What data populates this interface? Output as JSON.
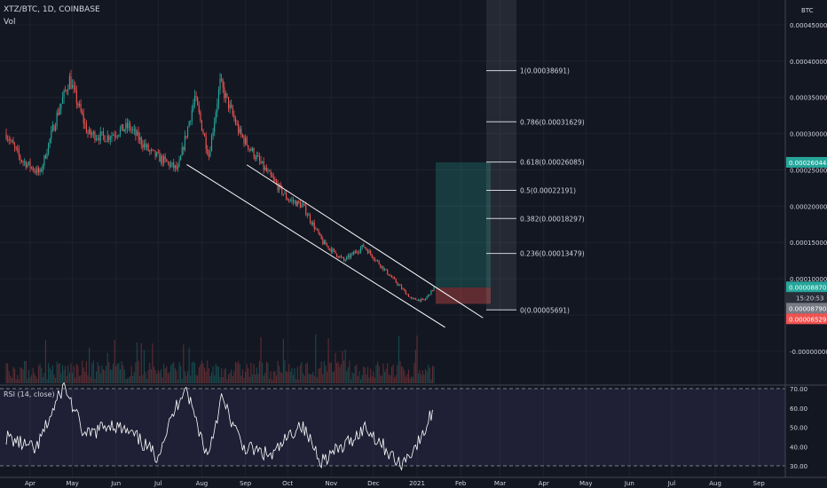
{
  "header": {
    "symbol": "XTZ/BTC, 1D, COINBASE",
    "vol": "Vol",
    "currency": "BTC"
  },
  "price_axis": {
    "ticks": [
      "0.00045000",
      "0.00040000",
      "0.00035000",
      "0.00030000",
      "0.00025000",
      "0.00020000",
      "0.00015000",
      "0.00010000",
      "0.00005000",
      "-0.00000000"
    ],
    "badges": {
      "target": "0.00026044",
      "last": "0.00008870",
      "countdown": "15:20:53",
      "entry": "0.00008790",
      "stop": "0.00006529"
    }
  },
  "fib": [
    {
      "label": "1(0.00038691)",
      "value": 0.00038691
    },
    {
      "label": "0.786(0.00031629)",
      "value": 0.00031629
    },
    {
      "label": "0.618(0.00026085)",
      "value": 0.00026085
    },
    {
      "label": "0.5(0.00022191)",
      "value": 0.00022191
    },
    {
      "label": "0.382(0.00018297)",
      "value": 0.00018297
    },
    {
      "label": "0.236(0.00013479)",
      "value": 0.00013479
    },
    {
      "label": "0(0.00005691)",
      "value": 5.691e-05
    }
  ],
  "rsi": {
    "title": "RSI (14, close)",
    "ticks": [
      "70.00",
      "60.00",
      "50.00",
      "40.00",
      "30.00"
    ]
  },
  "time_axis": [
    "Apr",
    "May",
    "Jun",
    "Jul",
    "Aug",
    "Sep",
    "Oct",
    "Nov",
    "Dec",
    "2021",
    "Feb",
    "Mar",
    "Apr",
    "May",
    "Jun",
    "Jul",
    "Aug",
    "Sep"
  ],
  "colors": {
    "up": "#26a69a",
    "down": "#ef5350",
    "rsi": "#ffffff",
    "rsi_band": "#7e57c2",
    "target_zone": "#26a69a",
    "stop_zone": "#ef5350"
  },
  "chart_data": {
    "type": "candlestick",
    "y_unit": "BTC",
    "ylim": [
      -1e-05,
      0.00045
    ],
    "rsi_ylim": [
      30,
      70
    ],
    "price_path": [
      [
        "2020-03-15",
        0.0003
      ],
      [
        "2020-03-25",
        0.000265
      ],
      [
        "2020-04-08",
        0.000245
      ],
      [
        "2020-04-20",
        0.000325
      ],
      [
        "2020-04-29",
        0.000375
      ],
      [
        "2020-05-12",
        0.0003
      ],
      [
        "2020-05-25",
        0.000295
      ],
      [
        "2020-06-10",
        0.00031
      ],
      [
        "2020-06-25",
        0.000275
      ],
      [
        "2020-07-15",
        0.00025
      ],
      [
        "2020-07-27",
        0.00035
      ],
      [
        "2020-08-06",
        0.00027
      ],
      [
        "2020-08-14",
        0.00037
      ],
      [
        "2020-08-28",
        0.0003
      ],
      [
        "2020-09-15",
        0.00025
      ],
      [
        "2020-10-01",
        0.00021
      ],
      [
        "2020-10-12",
        0.0002
      ],
      [
        "2020-10-26",
        0.00015
      ],
      [
        "2020-11-10",
        0.000125
      ],
      [
        "2020-11-24",
        0.000145
      ],
      [
        "2020-12-10",
        0.00011
      ],
      [
        "2020-12-28",
        7.2e-05
      ],
      [
        "2021-01-06",
        7e-05
      ],
      [
        "2021-01-13",
        8.7e-05
      ]
    ],
    "rsi_path": [
      [
        "2020-03-15",
        45
      ],
      [
        "2020-04-05",
        38
      ],
      [
        "2020-04-15",
        55
      ],
      [
        "2020-04-25",
        72
      ],
      [
        "2020-05-10",
        45
      ],
      [
        "2020-05-28",
        52
      ],
      [
        "2020-06-15",
        45
      ],
      [
        "2020-06-30",
        35
      ],
      [
        "2020-07-20",
        72
      ],
      [
        "2020-08-05",
        35
      ],
      [
        "2020-08-15",
        65
      ],
      [
        "2020-08-30",
        40
      ],
      [
        "2020-09-20",
        35
      ],
      [
        "2020-10-10",
        52
      ],
      [
        "2020-10-25",
        33
      ],
      [
        "2020-11-10",
        40
      ],
      [
        "2020-11-25",
        50
      ],
      [
        "2020-12-05",
        43
      ],
      [
        "2020-12-20",
        30
      ],
      [
        "2021-01-05",
        45
      ],
      [
        "2021-01-12",
        59
      ]
    ],
    "fib_retracement": {
      "high": 0.00038691,
      "low": 5.691e-05
    },
    "position": {
      "entry": 8.79e-05,
      "target": 0.00026044,
      "stop": 6.529e-05
    },
    "channel": {
      "upper": [
        [
          "2020-09-02",
          0.000257
        ],
        [
          "2021-01-10",
          9e-05
        ]
      ],
      "lower": [
        [
          "2020-07-15",
          0.000255
        ],
        [
          "2021-01-02",
          5e-05
        ]
      ]
    }
  }
}
